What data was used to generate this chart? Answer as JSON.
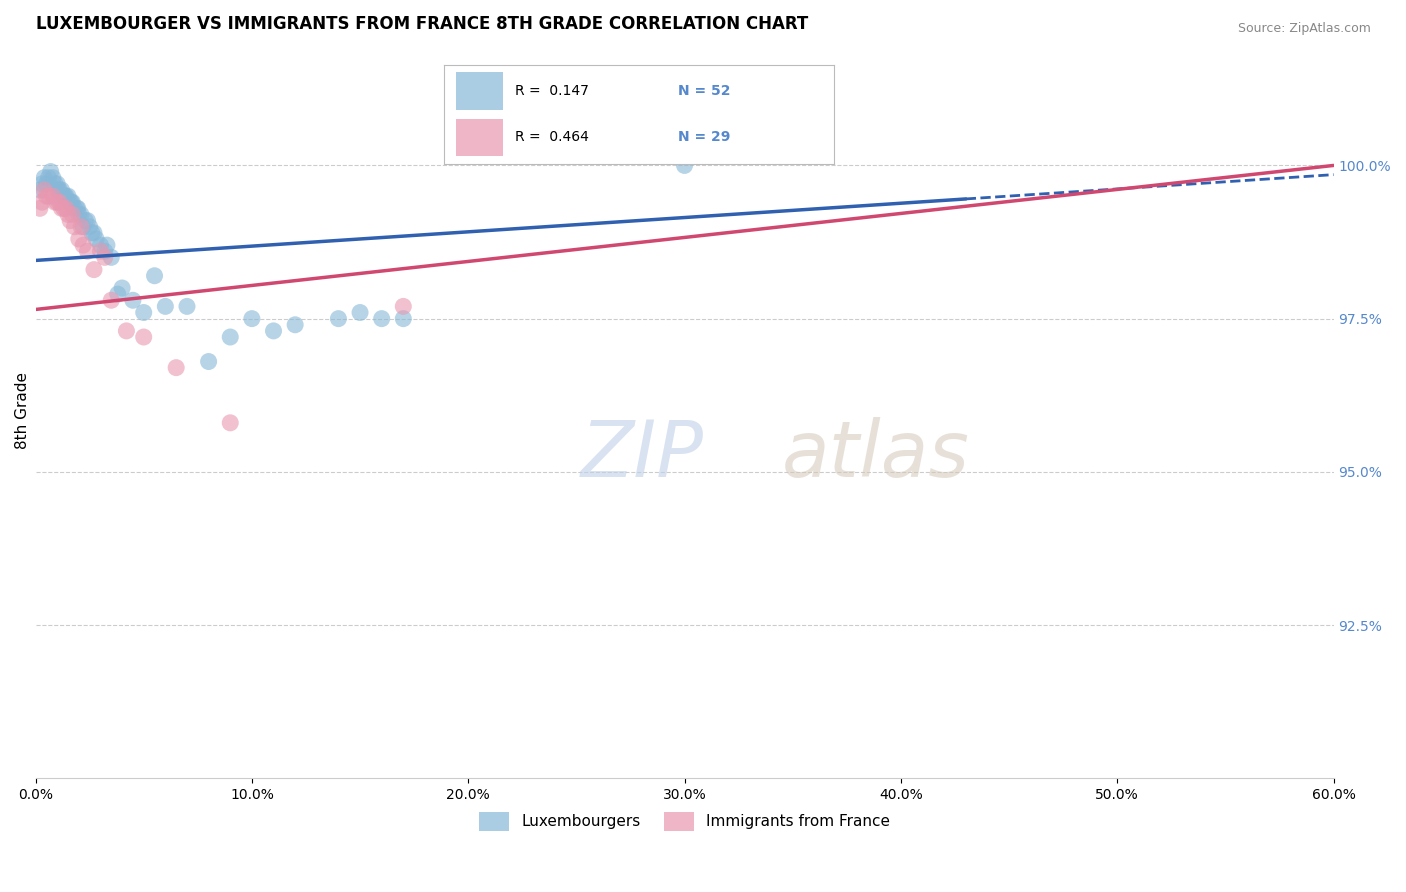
{
  "title": "LUXEMBOURGER VS IMMIGRANTS FROM FRANCE 8TH GRADE CORRELATION CHART",
  "source": "Source: ZipAtlas.com",
  "ylabel": "8th Grade",
  "x_tick_labels": [
    "0.0%",
    "10.0%",
    "20.0%",
    "30.0%",
    "40.0%",
    "50.0%",
    "60.0%"
  ],
  "x_tick_vals": [
    0.0,
    10.0,
    20.0,
    30.0,
    40.0,
    50.0,
    60.0
  ],
  "y_tick_labels": [
    "92.5%",
    "95.0%",
    "97.5%",
    "100.0%"
  ],
  "y_tick_vals": [
    92.5,
    95.0,
    97.5,
    100.0
  ],
  "xlim": [
    0.0,
    60.0
  ],
  "ylim": [
    90.0,
    102.0
  ],
  "blue_color": "#88b8d8",
  "pink_color": "#e898b0",
  "blue_line_color": "#3060b0",
  "pink_line_color": "#d04870",
  "blue_R": 0.147,
  "blue_N": 52,
  "pink_R": 0.464,
  "pink_N": 29,
  "legend_labels": [
    "Luxembourgers",
    "Immigrants from France"
  ],
  "blue_x": [
    0.2,
    0.4,
    0.5,
    0.7,
    0.8,
    0.9,
    1.0,
    1.1,
    1.2,
    1.3,
    1.4,
    1.5,
    1.6,
    1.7,
    1.8,
    1.9,
    2.0,
    2.1,
    2.2,
    2.4,
    2.5,
    2.6,
    2.8,
    3.0,
    3.2,
    3.5,
    3.8,
    4.0,
    4.5,
    5.0,
    5.5,
    6.0,
    7.0,
    8.0,
    9.0,
    10.0,
    11.0,
    12.0,
    14.0,
    15.0,
    16.0,
    17.0,
    0.3,
    0.6,
    1.05,
    1.35,
    1.65,
    1.95,
    2.3,
    2.7,
    3.3,
    30.0
  ],
  "blue_y": [
    99.6,
    99.8,
    99.7,
    99.9,
    99.8,
    99.7,
    99.7,
    99.6,
    99.6,
    99.5,
    99.5,
    99.5,
    99.4,
    99.4,
    99.3,
    99.3,
    99.2,
    99.2,
    99.0,
    99.1,
    99.0,
    98.9,
    98.8,
    98.7,
    98.6,
    98.5,
    97.9,
    98.0,
    97.8,
    97.6,
    98.2,
    97.7,
    97.7,
    96.8,
    97.2,
    97.5,
    97.3,
    97.4,
    97.5,
    97.6,
    97.5,
    97.5,
    99.7,
    99.8,
    99.6,
    99.5,
    99.4,
    99.3,
    99.1,
    98.9,
    98.7,
    100.0
  ],
  "pink_x": [
    0.2,
    0.4,
    0.6,
    0.8,
    1.0,
    1.1,
    1.2,
    1.3,
    1.5,
    1.6,
    1.8,
    2.0,
    2.2,
    2.4,
    2.7,
    3.0,
    3.5,
    4.2,
    5.0,
    6.5,
    9.0,
    0.3,
    0.5,
    0.9,
    1.4,
    1.7,
    2.1,
    3.2,
    17.0
  ],
  "pink_y": [
    99.3,
    99.6,
    99.5,
    99.5,
    99.4,
    99.4,
    99.3,
    99.3,
    99.2,
    99.1,
    99.0,
    98.8,
    98.7,
    98.6,
    98.3,
    98.6,
    97.8,
    97.3,
    97.2,
    96.7,
    95.8,
    99.4,
    99.5,
    99.4,
    99.3,
    99.2,
    99.0,
    98.5,
    97.7
  ],
  "background_color": "#ffffff",
  "grid_color": "#cccccc",
  "right_axis_color": "#5588cc",
  "title_fontsize": 12,
  "axis_label_fontsize": 11,
  "watermark_text": "ZIPatlas",
  "watermark_color": "#c8ddf0"
}
